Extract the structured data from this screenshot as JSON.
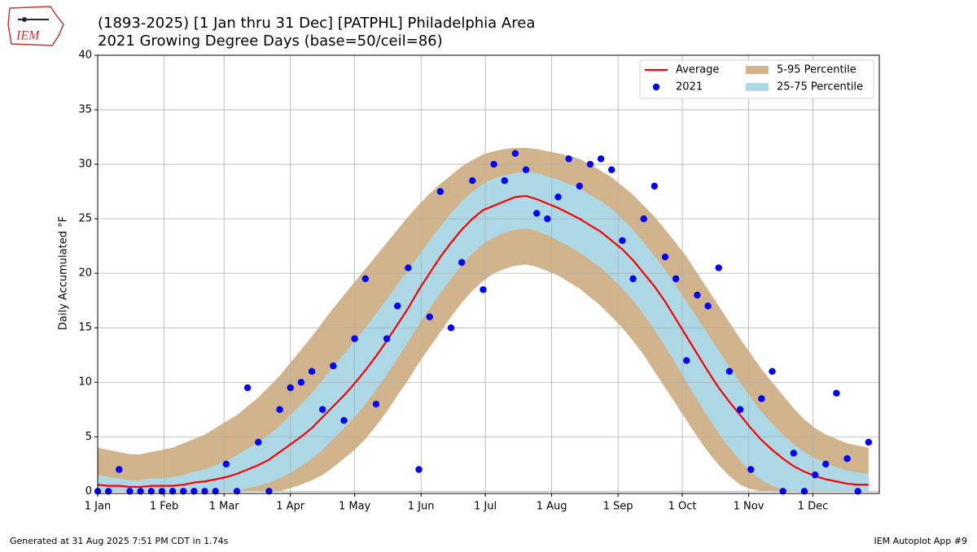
{
  "logo": "IEM",
  "footer_left": "Generated at 31 Aug 2025 7:51 PM CDT in 1.74s",
  "footer_right": "IEM Autoplot App #9",
  "chart_data": {
    "type": "line",
    "title": "(1893-2025) [1 Jan thru 31 Dec] [PATPHL] Philadelphia Area",
    "subtitle": "2021 Growing Degree Days (base=50/ceil=86)",
    "y_label": "Daily Accumulated °F",
    "grid": true,
    "legend_position": "upper right",
    "xlim": [
      1,
      366
    ],
    "ylim": [
      -0.2,
      40
    ],
    "xticks": [
      {
        "value": 1,
        "label": "1 Jan"
      },
      {
        "value": 32,
        "label": "1 Feb"
      },
      {
        "value": 60,
        "label": "1 Mar"
      },
      {
        "value": 91,
        "label": "1 Apr"
      },
      {
        "value": 121,
        "label": "1 May"
      },
      {
        "value": 152,
        "label": "1 Jun"
      },
      {
        "value": 182,
        "label": "1 Jul"
      },
      {
        "value": 213,
        "label": "1 Aug"
      },
      {
        "value": 244,
        "label": "1 Sep"
      },
      {
        "value": 274,
        "label": "1 Oct"
      },
      {
        "value": 305,
        "label": "1 Nov"
      },
      {
        "value": 335,
        "label": "1 Dec"
      }
    ],
    "yticks": [
      0,
      5,
      10,
      15,
      20,
      25,
      30,
      35,
      40
    ],
    "x": [
      1,
      6,
      11,
      16,
      21,
      26,
      31,
      36,
      41,
      46,
      51,
      56,
      61,
      66,
      71,
      76,
      81,
      86,
      91,
      96,
      101,
      106,
      111,
      116,
      121,
      126,
      131,
      136,
      141,
      146,
      151,
      156,
      161,
      166,
      171,
      176,
      181,
      186,
      191,
      196,
      201,
      206,
      211,
      216,
      221,
      226,
      231,
      236,
      241,
      246,
      251,
      256,
      261,
      266,
      271,
      276,
      281,
      286,
      291,
      296,
      301,
      306,
      311,
      316,
      321,
      326,
      331,
      336,
      341,
      346,
      351,
      356,
      361
    ],
    "series": [
      {
        "name": "Average",
        "color": "#ff0000",
        "style": "line",
        "values": [
          0.6,
          0.5,
          0.5,
          0.4,
          0.4,
          0.5,
          0.5,
          0.5,
          0.6,
          0.8,
          0.9,
          1.1,
          1.3,
          1.6,
          2.0,
          2.4,
          2.9,
          3.6,
          4.3,
          5.0,
          5.8,
          6.8,
          7.8,
          8.8,
          9.9,
          11.1,
          12.4,
          13.8,
          15.3,
          16.8,
          18.5,
          20.0,
          21.5,
          22.8,
          24.0,
          25.0,
          25.8,
          26.2,
          26.6,
          27.0,
          27.1,
          26.8,
          26.4,
          26.0,
          25.5,
          25.0,
          24.4,
          23.8,
          23.0,
          22.2,
          21.2,
          20.0,
          18.8,
          17.4,
          15.8,
          14.2,
          12.6,
          11.0,
          9.5,
          8.2,
          7.0,
          5.8,
          4.7,
          3.8,
          3.0,
          2.3,
          1.8,
          1.4,
          1.1,
          0.9,
          0.7,
          0.6,
          0.6
        ]
      },
      {
        "name": "2021",
        "color": "#0000ff",
        "style": "scatter",
        "values": [
          0,
          0,
          2,
          0,
          0,
          0,
          0,
          0,
          0,
          0,
          0,
          0,
          2.5,
          0,
          9.5,
          4.5,
          0,
          7.5,
          9.5,
          10,
          11,
          7.5,
          11.5,
          6.5,
          14,
          19.5,
          8,
          14,
          17,
          20.5,
          2,
          16,
          27.5,
          15,
          21,
          28.5,
          18.5,
          30,
          28.5,
          31,
          29.5,
          25.5,
          25,
          27,
          30.5,
          28,
          30,
          30.5,
          29.5,
          23,
          19.5,
          25,
          28,
          21.5,
          19.5,
          12,
          18,
          17,
          20.5,
          11,
          7.5,
          2,
          8.5,
          11,
          0,
          3.5,
          0,
          1.5,
          2.5,
          9,
          3,
          0,
          4.5
        ]
      },
      {
        "name": "5-95 Percentile",
        "color": "#d2b48c",
        "style": "band",
        "low": [
          0,
          0,
          0,
          0,
          0,
          0,
          0,
          0,
          0,
          0,
          0,
          0,
          0,
          0,
          0,
          0,
          0,
          0,
          0.3,
          0.6,
          1.0,
          1.5,
          2.2,
          3.0,
          3.8,
          4.8,
          6.0,
          7.3,
          8.8,
          10.2,
          11.8,
          13.2,
          14.6,
          16.0,
          17.3,
          18.4,
          19.3,
          20.0,
          20.4,
          20.7,
          20.8,
          20.6,
          20.2,
          19.8,
          19.2,
          18.6,
          17.8,
          17.0,
          16.0,
          15.0,
          13.8,
          12.5,
          11.0,
          9.5,
          8.0,
          6.5,
          5.0,
          3.6,
          2.4,
          1.4,
          0.6,
          0.2,
          0,
          0,
          0,
          0,
          0,
          0,
          0,
          0,
          0,
          0,
          0
        ],
        "high": [
          4.0,
          3.8,
          3.6,
          3.4,
          3.4,
          3.6,
          3.8,
          4.0,
          4.4,
          4.8,
          5.2,
          5.8,
          6.4,
          7.0,
          7.8,
          8.6,
          9.6,
          10.6,
          11.8,
          13.0,
          14.2,
          15.5,
          16.8,
          18.0,
          19.2,
          20.4,
          21.6,
          22.8,
          24.0,
          25.2,
          26.3,
          27.3,
          28.2,
          29.0,
          29.8,
          30.4,
          30.9,
          31.2,
          31.4,
          31.5,
          31.5,
          31.4,
          31.2,
          31.0,
          30.8,
          30.5,
          30.0,
          29.4,
          28.8,
          28.0,
          27.2,
          26.2,
          25.2,
          24.0,
          22.8,
          21.5,
          20.0,
          18.5,
          17.0,
          15.5,
          14.0,
          12.6,
          11.2,
          10.0,
          8.8,
          7.6,
          6.6,
          5.8,
          5.2,
          4.8,
          4.4,
          4.2,
          4.0
        ]
      },
      {
        "name": "25-75 Percentile",
        "color": "#add8e6",
        "style": "band",
        "low": [
          0,
          0,
          0,
          0,
          0,
          0,
          0,
          0,
          0,
          0,
          0,
          0,
          0,
          0,
          0.3,
          0.5,
          0.8,
          1.2,
          1.7,
          2.3,
          3.0,
          3.8,
          4.8,
          5.8,
          6.8,
          8.0,
          9.3,
          10.7,
          12.2,
          13.7,
          15.3,
          16.8,
          18.2,
          19.5,
          20.8,
          21.8,
          22.7,
          23.3,
          23.7,
          24.0,
          24.1,
          23.9,
          23.5,
          23.0,
          22.5,
          21.9,
          21.2,
          20.5,
          19.6,
          18.6,
          17.5,
          16.2,
          14.8,
          13.3,
          11.7,
          10.0,
          8.4,
          6.8,
          5.3,
          4.0,
          2.8,
          1.8,
          1.0,
          0.5,
          0.2,
          0,
          0,
          0,
          0,
          0,
          0,
          0,
          0
        ],
        "high": [
          1.5,
          1.3,
          1.2,
          1.0,
          1.0,
          1.2,
          1.2,
          1.3,
          1.5,
          1.8,
          2.0,
          2.4,
          2.8,
          3.3,
          3.9,
          4.5,
          5.2,
          6.0,
          7.0,
          8.0,
          9.0,
          10.2,
          11.4,
          12.6,
          13.8,
          15.0,
          16.3,
          17.6,
          19.0,
          20.3,
          21.7,
          23.0,
          24.3,
          25.5,
          26.6,
          27.5,
          28.2,
          28.7,
          29.0,
          29.2,
          29.3,
          29.2,
          28.9,
          28.6,
          28.2,
          27.8,
          27.2,
          26.6,
          25.9,
          25.0,
          24.0,
          22.8,
          21.6,
          20.3,
          18.9,
          17.4,
          15.9,
          14.4,
          12.9,
          11.4,
          10.0,
          8.6,
          7.3,
          6.2,
          5.2,
          4.3,
          3.6,
          3.0,
          2.6,
          2.2,
          1.9,
          1.7,
          1.6
        ]
      }
    ]
  }
}
